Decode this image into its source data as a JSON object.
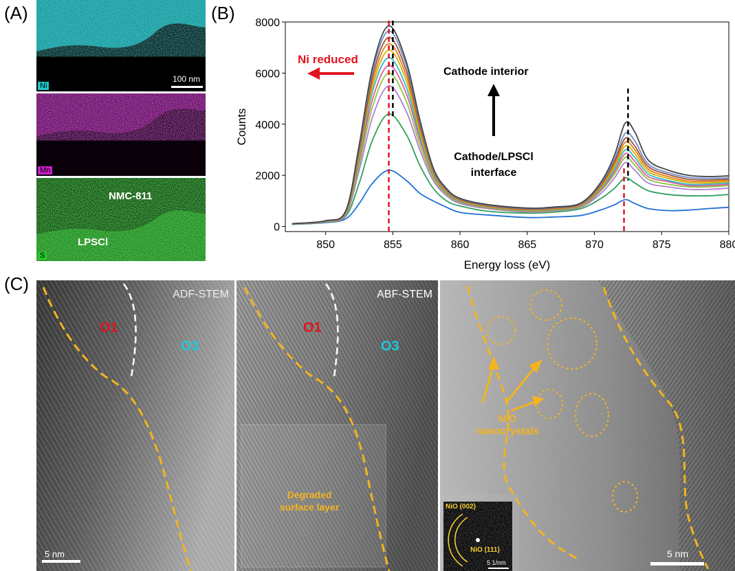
{
  "panels": {
    "a": "(A)",
    "b": "(B)",
    "c": "(C)"
  },
  "eds": {
    "ni_label": "Ni",
    "mn_label": "Mn",
    "s_label": "S",
    "scale": "100 nm",
    "nmc_label": "NMC-811",
    "lpscl_label": "LPSCl",
    "colors": {
      "ni": "#1ec8c8",
      "mn": "#c81ec8",
      "s": "#28c828"
    }
  },
  "stem": {
    "adf_title": "ADF-STEM",
    "abf_title": "ABF-STEM",
    "o1": "O1",
    "o3": "O3",
    "degraded_1": "Degraded",
    "degraded_2": "surface layer",
    "nio_1": "NiO",
    "nio_2": "nanocrystals",
    "fft_002": "NiO (002)",
    "fft_111": "NiO (111)",
    "fft_scale": "5 1/nm",
    "scale_left": "5 nm",
    "scale_right": "5 nm",
    "colors": {
      "boundary": "#f5b41e",
      "o1": "#e0141e",
      "o3": "#1ec8dc"
    }
  },
  "chart_data": {
    "type": "line",
    "xlabel": "Energy loss (eV)",
    "ylabel": "Counts",
    "xlim": [
      847,
      880
    ],
    "ylim": [
      -200,
      8000
    ],
    "xticks": [
      850,
      855,
      860,
      865,
      870,
      875,
      880
    ],
    "yticks": [
      0,
      2000,
      4000,
      6000,
      8000
    ],
    "annotations": {
      "ni_reduced": "Ni reduced",
      "interior": "Cathode interior",
      "interface_1": "Cathode/LPSCl",
      "interface_2": "interface"
    },
    "marker_lines": {
      "red": [
        854.7,
        872.2
      ],
      "black": [
        855.0,
        872.5
      ]
    },
    "shape_x": [
      847.5,
      850,
      851.5,
      852.5,
      853.5,
      854.7,
      856,
      857,
      858,
      859,
      860,
      862,
      865,
      867,
      869,
      870.5,
      871.5,
      872.3,
      873,
      874,
      875.5,
      877,
      878.5,
      880
    ],
    "series": [
      {
        "color": "#1f6fd6",
        "values": [
          80,
          150,
          300,
          900,
          1700,
          2200,
          1800,
          1300,
          1000,
          750,
          550,
          450,
          350,
          370,
          430,
          650,
          850,
          1050,
          900,
          700,
          620,
          640,
          700,
          750
        ]
      },
      {
        "color": "#2ca05a",
        "values": [
          80,
          170,
          400,
          1700,
          3400,
          4400,
          3600,
          2400,
          1500,
          1000,
          800,
          600,
          520,
          560,
          700,
          1100,
          1500,
          1900,
          1700,
          1400,
          1250,
          1200,
          1200,
          1250
        ]
      },
      {
        "color": "#b07cd8",
        "values": [
          90,
          180,
          450,
          2200,
          4300,
          5500,
          4500,
          3000,
          1800,
          1200,
          900,
          700,
          560,
          600,
          760,
          1300,
          1900,
          2500,
          2200,
          1700,
          1550,
          1450,
          1450,
          1500
        ]
      },
      {
        "color": "#8cc63f",
        "values": [
          90,
          190,
          480,
          2400,
          4700,
          6000,
          4900,
          3200,
          1900,
          1250,
          950,
          720,
          580,
          620,
          780,
          1400,
          2050,
          2700,
          2400,
          1850,
          1650,
          1550,
          1550,
          1600
        ]
      },
      {
        "color": "#e05a9a",
        "values": [
          95,
          195,
          500,
          2600,
          5000,
          6300,
          5200,
          3400,
          2000,
          1300,
          980,
          740,
          600,
          640,
          800,
          1450,
          2150,
          2850,
          2550,
          1950,
          1750,
          1600,
          1600,
          1650
        ]
      },
      {
        "color": "#2fb8c8",
        "values": [
          95,
          200,
          520,
          2700,
          5300,
          6600,
          5450,
          3550,
          2050,
          1330,
          1000,
          760,
          620,
          660,
          820,
          1500,
          2250,
          3000,
          2700,
          2050,
          1800,
          1650,
          1650,
          1700
        ]
      },
      {
        "color": "#d4b000",
        "values": [
          100,
          205,
          540,
          2800,
          5500,
          6900,
          5700,
          3700,
          2100,
          1360,
          1020,
          780,
          640,
          680,
          840,
          1550,
          2350,
          3150,
          2850,
          2150,
          1880,
          1720,
          1700,
          1750
        ]
      },
      {
        "color": "#e07b1a",
        "values": [
          100,
          210,
          560,
          2900,
          5700,
          7150,
          5900,
          3850,
          2150,
          1390,
          1040,
          800,
          660,
          700,
          860,
          1600,
          2450,
          3300,
          3000,
          2250,
          1950,
          1780,
          1760,
          1800
        ]
      },
      {
        "color": "#a05030",
        "values": [
          105,
          215,
          580,
          3000,
          5900,
          7400,
          6100,
          4000,
          2200,
          1420,
          1060,
          820,
          680,
          720,
          880,
          1650,
          2550,
          3450,
          3150,
          2350,
          2030,
          1850,
          1820,
          1850
        ]
      },
      {
        "color": "#6a8fd0",
        "values": [
          105,
          220,
          600,
          3100,
          6100,
          7650,
          6300,
          4100,
          2250,
          1450,
          1080,
          840,
          700,
          740,
          900,
          1700,
          2650,
          3650,
          3350,
          2450,
          2100,
          1920,
          1880,
          1900
        ]
      },
      {
        "color": "#444444",
        "values": [
          110,
          225,
          620,
          3200,
          6250,
          7850,
          6450,
          4200,
          2300,
          1480,
          1100,
          860,
          720,
          760,
          920,
          1750,
          2800,
          4050,
          3700,
          2600,
          2200,
          2000,
          1950,
          1980
        ]
      }
    ]
  }
}
